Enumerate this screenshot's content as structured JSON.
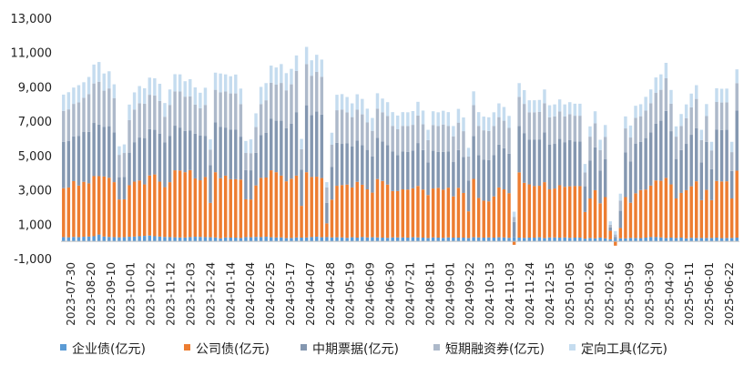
{
  "chart_data": {
    "type": "bar",
    "stacked": true,
    "title": "",
    "xlabel": "",
    "ylabel": "",
    "ylim": [
      -1000,
      13000
    ],
    "yticks": [
      "-1,000",
      "1,000",
      "3,000",
      "5,000",
      "7,000",
      "9,000",
      "11,000",
      "13,000"
    ],
    "ytick_values": [
      -1000,
      1000,
      3000,
      5000,
      7000,
      9000,
      11000,
      13000
    ],
    "grid": false,
    "legend_position": "bottom",
    "x_tick_labels": [
      "2023-07-30",
      "2023-08-20",
      "2023-09-10",
      "2023-10-01",
      "2023-10-22",
      "2023-11-12",
      "2023-12-03",
      "2023-12-24",
      "2024-01-14",
      "2024-02-04",
      "2024-02-25",
      "2024-03-17",
      "2024-04-07",
      "2024-04-28",
      "2024-05-19",
      "2024-06-09",
      "2024-06-30",
      "2024-07-21",
      "2024-08-11",
      "2024-09-01",
      "2024-09-22",
      "2024-10-13",
      "2024-11-03",
      "2024-11-24",
      "2024-12-15",
      "2025-01-05",
      "2025-01-26",
      "2025-02-16",
      "2025-03-09",
      "2025-03-30",
      "2025-04-20",
      "2025-05-11",
      "2025-06-01",
      "2025-06-22"
    ],
    "series": [
      {
        "name": "企业债(亿元)",
        "color": "#5b9bd5",
        "values": [
          250,
          240,
          260,
          250,
          270,
          280,
          300,
          400,
          280,
          260,
          250,
          240,
          250,
          270,
          280,
          300,
          320,
          340,
          300,
          280,
          260,
          250,
          240,
          230,
          230,
          250,
          270,
          260,
          250,
          240,
          230,
          180,
          230,
          220,
          220,
          200,
          250,
          240,
          260,
          250,
          270,
          240,
          230,
          230,
          200,
          200,
          230,
          220,
          230,
          250,
          270,
          240,
          250,
          230,
          240,
          230,
          210,
          240,
          220,
          250,
          230,
          240,
          230,
          220,
          210,
          230,
          230,
          230,
          220,
          240,
          230,
          220,
          200,
          230,
          220,
          210,
          230,
          220,
          220,
          220,
          200,
          240,
          230,
          220,
          230,
          220,
          240,
          230,
          210,
          230,
          220,
          210,
          220,
          220,
          240,
          200,
          230,
          230,
          220,
          230,
          210,
          220,
          220,
          160,
          200,
          180,
          220,
          180,
          120,
          150,
          180,
          180,
          200,
          200,
          190,
          220,
          250,
          250,
          230,
          200,
          220,
          200,
          220,
          180,
          210,
          200,
          200,
          200,
          200,
          220,
          190,
          200,
          200,
          220
        ]
      },
      {
        "name": "公司债(亿元)",
        "color": "#ed7d31",
        "values": [
          2850,
          2900,
          3250,
          3000,
          3200,
          3100,
          3500,
          3400,
          3500,
          3450,
          3200,
          2200,
          2200,
          3000,
          3200,
          3250,
          3000,
          3500,
          3600,
          3200,
          2900,
          3200,
          3900,
          3900,
          3800,
          3900,
          3400,
          3300,
          3500,
          2000,
          3800,
          3500,
          3600,
          3400,
          3400,
          3400,
          2200,
          2200,
          3000,
          3450,
          3450,
          3900,
          3800,
          3600,
          3300,
          3450,
          3600,
          1850,
          3800,
          3500,
          3500,
          3450,
          800,
          2200,
          3000,
          3050,
          3100,
          2900,
          3250,
          3050,
          2800,
          2600,
          3400,
          3300,
          3100,
          2700,
          2700,
          2800,
          2800,
          2850,
          3000,
          2800,
          2500,
          2850,
          2900,
          2800,
          2900,
          2400,
          2900,
          2600,
          1550,
          3400,
          2300,
          2150,
          2100,
          2400,
          2900,
          2800,
          2600,
          -200,
          3800,
          3200,
          3100,
          3000,
          3000,
          3250,
          2800,
          2850,
          3050,
          2950,
          3000,
          3000,
          3000,
          1550,
          2300,
          2800,
          2000,
          2400,
          500,
          -250,
          600,
          2400,
          2050,
          2600,
          2800,
          2800,
          3000,
          3300,
          3300,
          3500,
          3100,
          2300,
          2600,
          2800,
          3000,
          3300,
          2200,
          2800,
          2200,
          3300,
          3300,
          3300,
          2300,
          3900
        ]
      },
      {
        "name": "中期票据(亿元)",
        "color": "#8497b0",
        "values": [
          2700,
          2700,
          2600,
          2900,
          2900,
          3000,
          3100,
          3000,
          2900,
          3000,
          2900,
          1300,
          1300,
          1900,
          2300,
          2500,
          2700,
          2700,
          2600,
          2800,
          2600,
          2700,
          2600,
          2500,
          2400,
          2300,
          2600,
          2600,
          2400,
          2200,
          2900,
          3000,
          2800,
          2900,
          2900,
          2500,
          1700,
          1700,
          1900,
          2500,
          2600,
          3000,
          3000,
          3200,
          3100,
          3200,
          3700,
          2100,
          3900,
          3600,
          3800,
          3700,
          1200,
          1900,
          2500,
          2400,
          2400,
          2400,
          2400,
          2300,
          2300,
          2100,
          2400,
          2300,
          2300,
          2300,
          2100,
          2200,
          2200,
          2200,
          2500,
          2300,
          1900,
          2200,
          2100,
          2200,
          2100,
          2000,
          2200,
          2100,
          1800,
          2500,
          2500,
          2400,
          2400,
          2400,
          2500,
          2400,
          2300,
          900,
          2700,
          2900,
          2600,
          2700,
          2700,
          2900,
          2600,
          2600,
          2700,
          2600,
          2700,
          2600,
          2600,
          1500,
          2200,
          2500,
          1900,
          2200,
          200,
          100,
          1000,
          2600,
          2400,
          2900,
          2800,
          3000,
          3100,
          3300,
          3500,
          3900,
          3100,
          2300,
          2500,
          2700,
          3000,
          3100,
          2200,
          2800,
          1800,
          3000,
          3000,
          3000,
          1600,
          3500
        ]
      },
      {
        "name": "短期融资券(亿元)",
        "color": "#adb9ca",
        "values": [
          1800,
          1850,
          1900,
          1950,
          2000,
          2200,
          2300,
          2500,
          2100,
          2200,
          2000,
          1300,
          1400,
          1900,
          1900,
          2000,
          2000,
          2000,
          2000,
          1900,
          1500,
          1800,
          2000,
          2100,
          2000,
          2000,
          1700,
          1600,
          1800,
          900,
          1900,
          2000,
          2100,
          2100,
          2100,
          1900,
          1000,
          1000,
          1500,
          1800,
          1900,
          2100,
          2100,
          2200,
          2200,
          2300,
          2400,
          1200,
          2400,
          2300,
          2300,
          2200,
          900,
          1300,
          1900,
          2000,
          1800,
          1700,
          1800,
          1800,
          1600,
          1500,
          1700,
          1700,
          1700,
          1500,
          1500,
          1500,
          1500,
          1500,
          1600,
          1500,
          1300,
          1500,
          1500,
          1600,
          1500,
          1500,
          1600,
          1500,
          1400,
          1800,
          1700,
          1700,
          1700,
          1700,
          1600,
          1600,
          1500,
          300,
          1700,
          1700,
          1600,
          1600,
          1600,
          1700,
          1600,
          1600,
          1600,
          1500,
          1500,
          1500,
          1500,
          800,
          1400,
          1400,
          1200,
          1300,
          150,
          150,
          600,
          1400,
          1400,
          1500,
          1500,
          1600,
          1700,
          1800,
          1800,
          1900,
          1600,
          1300,
          1400,
          1500,
          1600,
          1700,
          1300,
          1500,
          1100,
          1600,
          1600,
          1600,
          1100,
          1600
        ]
      },
      {
        "name": "定向工具(亿元)",
        "color": "#c5dcef",
        "values": [
          950,
          1000,
          950,
          1000,
          900,
          1000,
          1100,
          1150,
          1000,
          1000,
          800,
          500,
          500,
          900,
          1000,
          1000,
          900,
          1000,
          1000,
          1000,
          800,
          900,
          1000,
          1000,
          900,
          1000,
          1000,
          900,
          1000,
          600,
          1000,
          1100,
          1000,
          1000,
          1100,
          900,
          700,
          800,
          800,
          1000,
          1000,
          1000,
          1000,
          1100,
          1000,
          900,
          900,
          600,
          1000,
          900,
          1000,
          1000,
          300,
          700,
          900,
          900,
          900,
          800,
          900,
          900,
          800,
          750,
          900,
          800,
          800,
          800,
          800,
          800,
          800,
          800,
          800,
          800,
          600,
          800,
          800,
          800,
          800,
          600,
          800,
          800,
          500,
          800,
          800,
          800,
          800,
          800,
          800,
          800,
          700,
          300,
          800,
          800,
          700,
          700,
          700,
          800,
          700,
          700,
          700,
          700,
          700,
          700,
          700,
          500,
          600,
          700,
          600,
          700,
          200,
          200,
          400,
          700,
          700,
          700,
          700,
          800,
          800,
          900,
          900,
          900,
          800,
          600,
          700,
          800,
          800,
          800,
          600,
          700,
          500,
          800,
          800,
          800,
          600,
          800
        ]
      }
    ]
  },
  "legend": [
    {
      "label": "企业债(亿元)",
      "color": "#5b9bd5"
    },
    {
      "label": "公司债(亿元)",
      "color": "#ed7d31"
    },
    {
      "label": "中期票据(亿元)",
      "color": "#8497b0"
    },
    {
      "label": "短期融资券(亿元)",
      "color": "#adb9ca"
    },
    {
      "label": "定向工具(亿元)",
      "color": "#c5dcef"
    }
  ]
}
